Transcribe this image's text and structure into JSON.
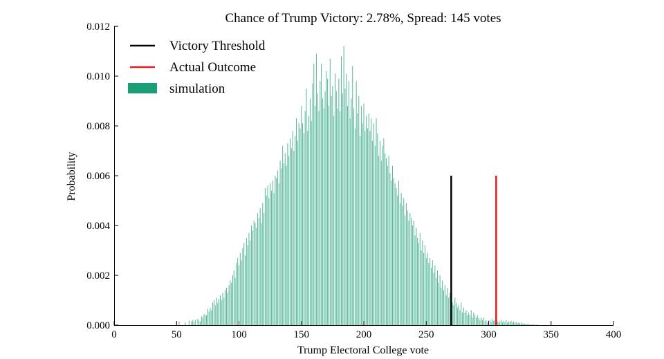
{
  "chart_data": {
    "type": "bar",
    "title": "Chance of Trump Victory: 2.78%, Spread: 145 votes",
    "xlabel": "Trump Electoral College vote",
    "ylabel": "Probability",
    "xlim": [
      0,
      400
    ],
    "ylim": [
      0,
      0.012
    ],
    "x_ticks": [
      0,
      50,
      100,
      150,
      200,
      250,
      300,
      350,
      400
    ],
    "x_tick_labels": [
      "0",
      "50",
      "100",
      "150",
      "200",
      "250",
      "300",
      "350",
      "400"
    ],
    "y_ticks": [
      0,
      0.002,
      0.004,
      0.006,
      0.008,
      0.01,
      0.012
    ],
    "y_tick_labels": [
      "0.000",
      "0.002",
      "0.004",
      "0.006",
      "0.008",
      "0.010",
      "0.012"
    ],
    "grid": false,
    "legend_position": "top-left",
    "legend": [
      {
        "label": "Victory Threshold",
        "type": "line",
        "color": "#000000"
      },
      {
        "label": "Actual Outcome",
        "type": "line",
        "color": "#e41a1c"
      },
      {
        "label": "simulation",
        "type": "patch",
        "color": "#1b9e77"
      }
    ],
    "reference_lines": [
      {
        "name": "Victory Threshold",
        "x": 270,
        "y_top": 0.006,
        "color": "#000000"
      },
      {
        "name": "Actual Outcome",
        "x": 306,
        "y_top": 0.006,
        "color": "#e41a1c"
      }
    ],
    "simulation": {
      "bin_start": 40,
      "bin_width": 1,
      "color": "#1b9e77",
      "values": [
        0,
        0,
        0,
        0,
        0,
        0,
        0,
        0,
        0,
        0,
        0.00012,
        0,
        0.00015,
        0,
        0,
        0,
        0,
        0.00012,
        0,
        0,
        0.00018,
        0,
        0.00015,
        0.0002,
        0.00012,
        0.00022,
        0,
        0.00025,
        0.00018,
        0.00015,
        0.00035,
        0.0003,
        0.00045,
        0.0004,
        0.0004,
        0.00065,
        0.00055,
        0.0007,
        0.0006,
        0.0009,
        0.001,
        0.0008,
        0.0011,
        0.0009,
        0.00105,
        0.0012,
        0.001,
        0.0013,
        0.0011,
        0.0014,
        0.0015,
        0.0013,
        0.0016,
        0.0018,
        0.0017,
        0.002,
        0.0022,
        0.0019,
        0.0025,
        0.0027,
        0.0024,
        0.0029,
        0.0026,
        0.0031,
        0.0033,
        0.0028,
        0.0035,
        0.0032,
        0.0037,
        0.0034,
        0.004,
        0.0038,
        0.0042,
        0.0041,
        0.0039,
        0.0045,
        0.0043,
        0.0047,
        0.0041,
        0.0049,
        0.0045,
        0.0055,
        0.0052,
        0.0056,
        0.0051,
        0.0057,
        0.0054,
        0.0058,
        0.0053,
        0.006,
        0.0059,
        0.0062,
        0.0057,
        0.0066,
        0.0063,
        0.0072,
        0.0065,
        0.0069,
        0.0064,
        0.0073,
        0.0068,
        0.0075,
        0.0071,
        0.0078,
        0.007,
        0.0076,
        0.0083,
        0.0074,
        0.0081,
        0.0079,
        0.0088,
        0.0081,
        0.0077,
        0.0086,
        0.0095,
        0.0078,
        0.0084,
        0.0091,
        0.0082,
        0.0097,
        0.0105,
        0.0088,
        0.0109,
        0.0093,
        0.0086,
        0.0098,
        0.0105,
        0.0091,
        0.0087,
        0.0094,
        0.0102,
        0.0099,
        0.0088,
        0.0107,
        0.0092,
        0.0096,
        0.0084,
        0.0101,
        0.0094,
        0.0087,
        0.0099,
        0.0086,
        0.0108,
        0.0093,
        0.0112,
        0.0095,
        0.0101,
        0.0088,
        0.0098,
        0.0083,
        0.0091,
        0.0104,
        0.0087,
        0.0079,
        0.0098,
        0.0085,
        0.0092,
        0.0076,
        0.0088,
        0.0081,
        0.0089,
        0.0078,
        0.0084,
        0.0079,
        0.0085,
        0.0078,
        0.0083,
        0.0074,
        0.0081,
        0.0072,
        0.0083,
        0.0077,
        0.0068,
        0.0074,
        0.0066,
        0.0072,
        0.0075,
        0.0069,
        0.0067,
        0.0064,
        0.0068,
        0.0061,
        0.0058,
        0.0064,
        0.0059,
        0.0057,
        0.0055,
        0.0052,
        0.0058,
        0.0049,
        0.0053,
        0.0048,
        0.0051,
        0.0044,
        0.0049,
        0.0046,
        0.0042,
        0.0045,
        0.0043,
        0.004,
        0.0042,
        0.0036,
        0.0039,
        0.0035,
        0.0033,
        0.0037,
        0.003,
        0.0034,
        0.0029,
        0.0032,
        0.0027,
        0.0029,
        0.0025,
        0.0027,
        0.0023,
        0.0026,
        0.0021,
        0.0024,
        0.0019,
        0.0022,
        0.0017,
        0.002,
        0.0015,
        0.0018,
        0.0014,
        0.0016,
        0.0012,
        0.0015,
        0.0011,
        0.0013,
        0.001,
        0.0009,
        0.0008,
        0.0011,
        0.0009,
        0.0007,
        0.0008,
        0.0006,
        0.0009,
        0.0005,
        0.0007,
        0.0005,
        0.0006,
        0.0004,
        0.0005,
        0.0004,
        0.0006,
        0.0003,
        0.0005,
        0.0004,
        0.0003,
        0.0004,
        0.0003,
        0.0002,
        0.0003,
        0.0002,
        0.0003,
        0.00015,
        0.0002,
        0.0001,
        0.00018,
        0.0002,
        0.00012,
        0.00025,
        0.00018,
        0.0002,
        0.00012,
        0.00015,
        0.0001,
        0.00015,
        0.00022,
        0.0001,
        0.00018,
        0.00012,
        0.0002,
        0.0001,
        0.00015,
        0.00012,
        0.00018,
        0.0001,
        0.00015,
        0.0001,
        0.00012,
        8e-05,
        0.0001,
        8e-05,
        0.0001,
        5e-05,
        8e-05,
        5e-05,
        5e-05,
        3e-05,
        5e-05,
        3e-05,
        2e-05,
        3e-05,
        2e-05,
        2e-05,
        1e-05,
        2e-05
      ]
    }
  }
}
